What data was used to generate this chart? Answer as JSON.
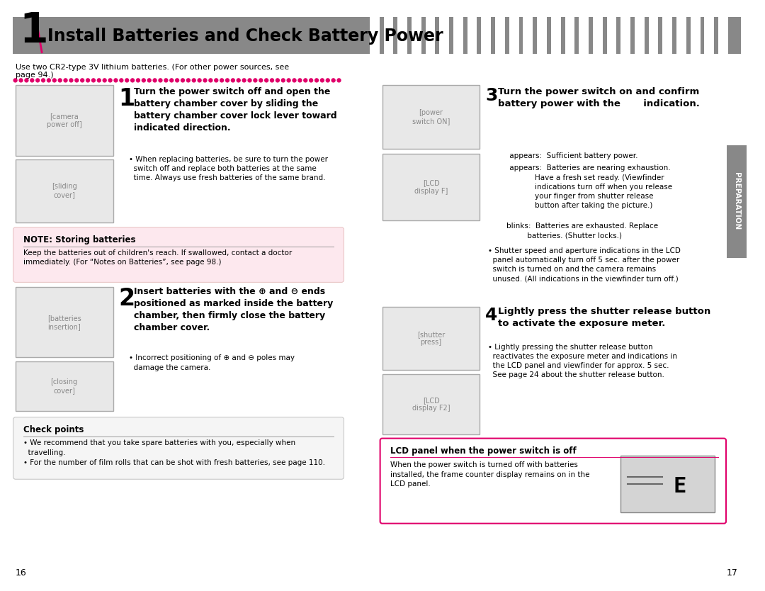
{
  "title_number": "1",
  "title_text": "Install Batteries and Check Battery Power",
  "title_bg_color": "#888888",
  "title_stripe_color": "#cccccc",
  "title_text_color": "#000000",
  "page_bg": "#ffffff",
  "pink_dot_color": "#e0006a",
  "section_line_color": "#e0006a",
  "note_bg_color": "#fde8ee",
  "note_border_color": "#cccccc",
  "lcd_border_color": "#e0006a",
  "lcd_bg_color": "#ffffff",
  "tab_bg_color": "#888888",
  "tab_text": "PREPARATION",
  "step1_heading": "Turn the power switch off and open the\nbattery chamber cover by sliding the\nbattery chamber cover lock lever toward\nindicated direction.",
  "step1_bullet": "• When replacing batteries, be sure to turn the power\n  switch off and replace both batteries at the same\n  time. Always use fresh batteries of the same brand.",
  "note_title": "NOTE: Storing batteries",
  "note_body": "Keep the batteries out of children's reach. If swallowed, contact a doctor\nimmediately. (For “Notes on Batteries”, see page 98.)",
  "step2_heading": "Insert batteries with the ⊕ and ⊖ ends\npositioned as marked inside the battery\nchamber, then firmly close the battery\nchamber cover.",
  "step2_bullet": "• Incorrect positioning of ⊕ and ⊖ poles may\n  damage the camera.",
  "check_title": "Check points",
  "check_body": "• We recommend that you take spare batteries with you, especially when\n  travelling.\n• For the number of film rolls that can be shot with fresh batteries, see page 110.",
  "step3_heading": "Turn the power switch on and confirm\nbattery power with the       indication.",
  "step3_b1": "     appears:  Sufficient battery power.",
  "step3_b2": "     appears:  Batteries are nearing exhaustion.\n                Have a fresh set ready. (Viewfinder\n                indications turn off when you release\n                your finger from shutter release\n                button after taking the picture.)",
  "step3_b3": "        blinks:  Batteries are exhausted. Replace\n                 batteries. (Shutter locks.)",
  "step3_bullet": "• Shutter speed and aperture indications in the LCD\n  panel automatically turn off 5 sec. after the power\n  switch is turned on and the camera remains\n  unused. (All indications in the viewfinder turn off.)",
  "step4_heading": "Lightly press the shutter release button\nto activate the exposure meter.",
  "step4_bullet": "• Lightly pressing the shutter release button\n  reactivates the exposure meter and indications in\n  the LCD panel and viewfinder for approx. 5 sec.\n  See page 24 about the shutter release button.",
  "lcd_title": "LCD panel when the power switch is off",
  "lcd_body": "When the power switch is turned off with batteries\ninstalled, the frame counter display remains on in the\nLCD panel.",
  "intro_text": "Use two CR2-type 3V lithium batteries. (For other power sources, see\npage 94.)",
  "page_left": "16",
  "page_right": "17"
}
